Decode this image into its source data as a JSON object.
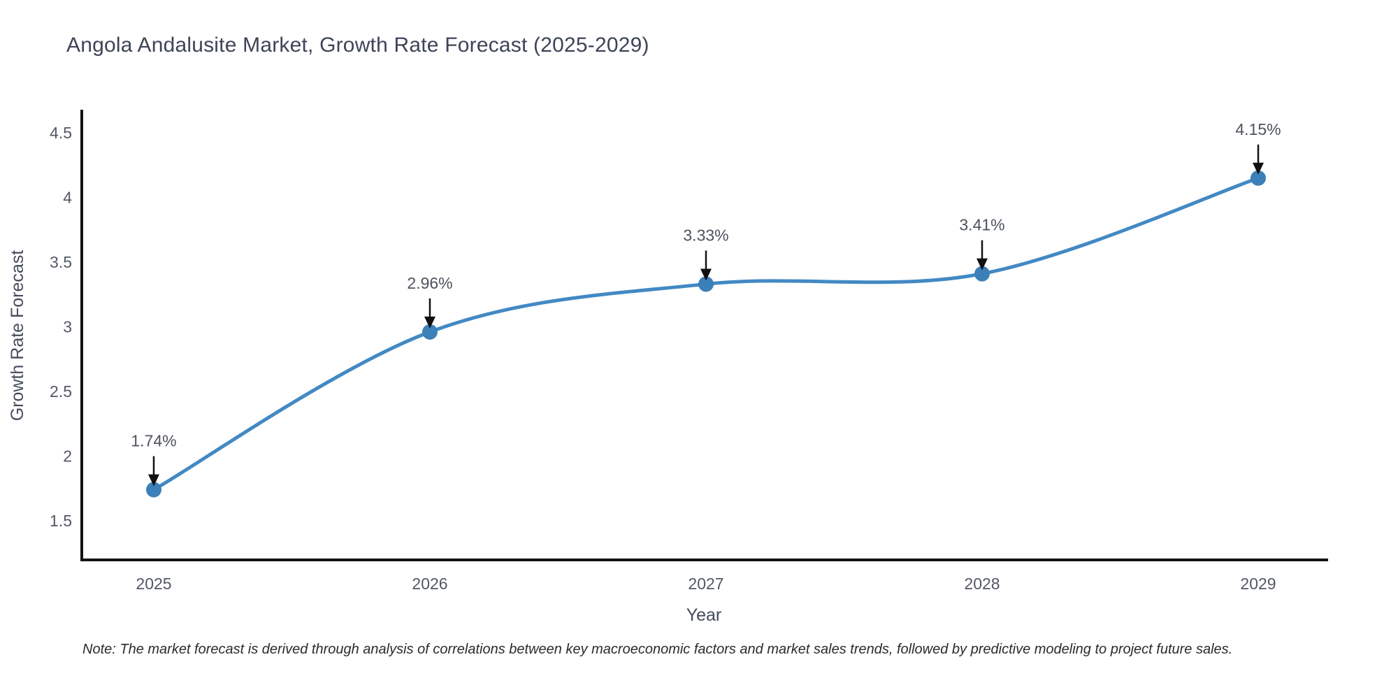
{
  "title": "Angola Andalusite Market, Growth Rate Forecast (2025-2029)",
  "note": "Note: The market forecast is derived through analysis of correlations between key macroeconomic factors and market sales trends, followed by predictive modeling to project future sales.",
  "chart_data": {
    "type": "line",
    "title": "Angola Andalusite Market, Growth Rate Forecast (2025-2029)",
    "xlabel": "Year",
    "ylabel": "Growth Rate Forecast",
    "x": [
      2025,
      2026,
      2027,
      2028,
      2029
    ],
    "values": [
      1.74,
      2.96,
      3.33,
      3.41,
      4.15
    ],
    "point_labels": [
      "1.74%",
      "2.96%",
      "3.33%",
      "3.41%",
      "4.15%"
    ],
    "xticks": [
      "2025",
      "2026",
      "2027",
      "2028",
      "2029"
    ],
    "yticks": [
      4.5,
      4,
      3.5,
      3,
      2.5,
      2,
      1.5
    ],
    "ylim": [
      1.2,
      4.68
    ],
    "grid": false,
    "legend": "none",
    "smooth": true,
    "colors": {
      "line": "#4289c4",
      "marker": "#3c80b9",
      "axis": "#141414",
      "arrow": "#111111",
      "title_text": "#3e4458",
      "tick_text": "#525865"
    }
  }
}
